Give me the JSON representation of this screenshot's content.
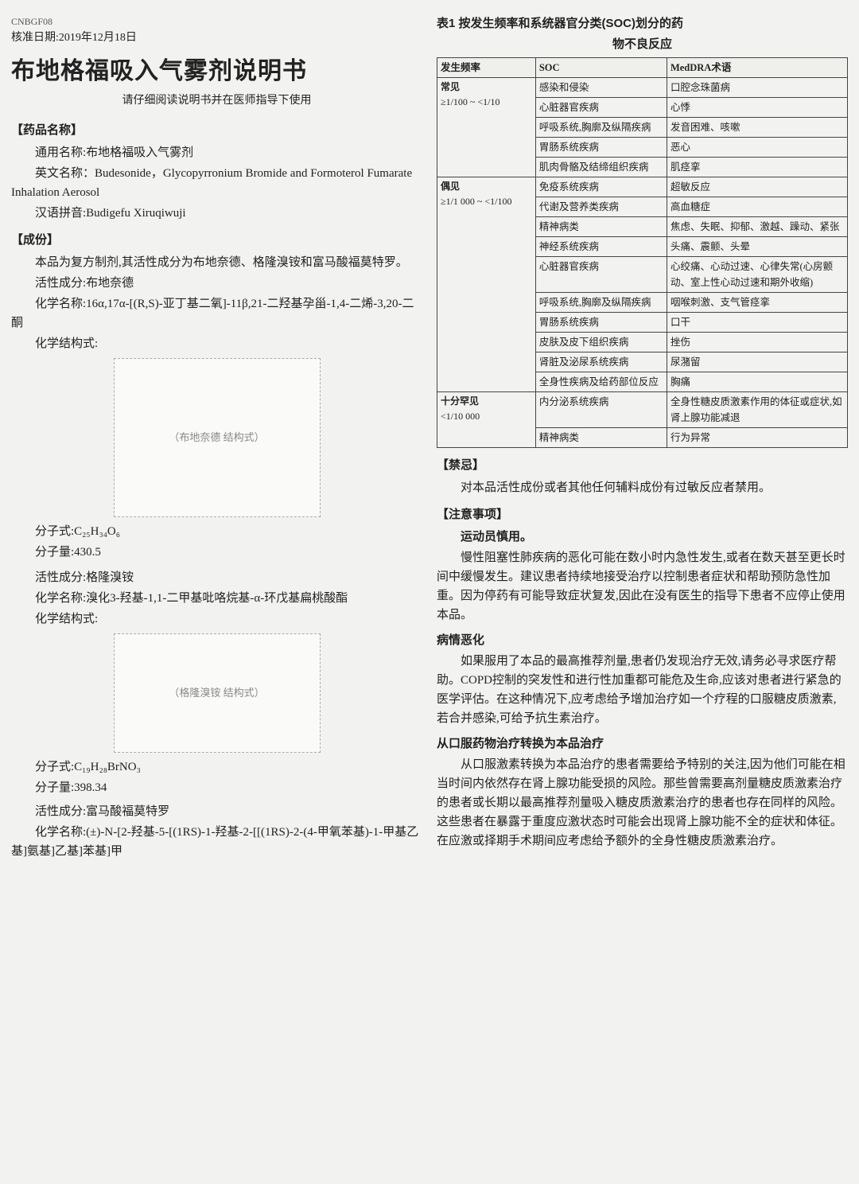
{
  "left": {
    "doccode": "CNBGF08",
    "approval": "核准日期:2019年12月18日",
    "title": "布地格福吸入气雾剂说明书",
    "subtitle": "请仔细阅读说明书并在医师指导下使用",
    "drugname_head": "【药品名称】",
    "generic_label": "通用名称:布地格福吸入气雾剂",
    "english_label": "英文名称：Budesonide，Glycopyrronium Bromide and Formoterol Fumarate Inhalation Aerosol",
    "pinyin_label": "汉语拼音:Budigefu Xiruqiwuji",
    "chengfen_head": "【成份】",
    "chengfen_intro": "本品为复方制剂,其活性成分为布地奈德、格隆溴铵和富马酸福莫特罗。",
    "active1_label": "活性成分:布地奈德",
    "active1_chem": "化学名称:16α,17α-[(R,S)-亚丁基二氧]-11β,21-二羟基孕甾-1,4-二烯-3,20-二酮",
    "structure_label": "化学结构式:",
    "structure1_placeholder": "（布地奈德 结构式）",
    "formula1": "分子式:C₂₅H₃₄O₆",
    "mw1": "分子量:430.5",
    "active2_label": "活性成分:格隆溴铵",
    "active2_chem": "化学名称:溴化3-羟基-1,1-二甲基吡咯烷基-α-环戊基扁桃酸酯",
    "structure2_placeholder": "（格隆溴铵 结构式）",
    "formula2": "分子式:C₁₉H₂₈BrNO₃",
    "mw2": "分子量:398.34",
    "active3_label": "活性成分:富马酸福莫特罗",
    "active3_chem": "化学名称:(±)-N-[2-羟基-5-[(1RS)-1-羟基-2-[[(1RS)-2-(4-甲氧苯基)-1-甲基乙基]氨基]乙基]苯基]甲"
  },
  "right": {
    "table_title1": "表1 按发生频率和系统器官分类(SOC)划分的药",
    "table_title2": "物不良反应",
    "headers": {
      "freq": "发生频率",
      "soc": "SOC",
      "meddra": "MedDRA术语"
    },
    "freq_common_label": "常见",
    "freq_common_range": "≥1/100 ~ <1/10",
    "freq_uncommon_label": "偶见",
    "freq_uncommon_range": "≥1/1 000 ~ <1/100",
    "freq_rare_label": "十分罕见",
    "freq_rare_range": "<1/10 000",
    "rows_common": [
      {
        "soc": "感染和侵染",
        "term": "口腔念珠菌病"
      },
      {
        "soc": "心脏器官疾病",
        "term": "心悸"
      },
      {
        "soc": "呼吸系统,胸廓及纵隔疾病",
        "term": "发音困难、咳嗽"
      },
      {
        "soc": "胃肠系统疾病",
        "term": "恶心"
      },
      {
        "soc": "肌肉骨骼及结缔组织疾病",
        "term": "肌痉挛"
      }
    ],
    "rows_uncommon": [
      {
        "soc": "免疫系统疾病",
        "term": "超敏反应"
      },
      {
        "soc": "代谢及营养类疾病",
        "term": "高血糖症"
      },
      {
        "soc": "精神病类",
        "term": "焦虑、失眠、抑郁、激越、躁动、紧张"
      },
      {
        "soc": "神经系统疾病",
        "term": "头痛、震颤、头晕"
      },
      {
        "soc": "心脏器官疾病",
        "term": "心绞痛、心动过速、心律失常(心房颤动、室上性心动过速和期外收缩)"
      },
      {
        "soc": "呼吸系统,胸廓及纵隔疾病",
        "term": "咽喉刺激、支气管痉挛"
      },
      {
        "soc": "胃肠系统疾病",
        "term": "口干"
      },
      {
        "soc": "皮肤及皮下组织疾病",
        "term": "挫伤"
      },
      {
        "soc": "肾脏及泌尿系统疾病",
        "term": "尿潴留"
      },
      {
        "soc": "全身性疾病及给药部位反应",
        "term": "胸痛"
      }
    ],
    "rows_rare": [
      {
        "soc": "内分泌系统疾病",
        "term": "全身性糖皮质激素作用的体征或症状,如肾上腺功能减退"
      },
      {
        "soc": "精神病类",
        "term": "行为异常"
      }
    ],
    "jinji_head": "【禁忌】",
    "jinji_text": "对本品活性成份或者其他任何辅料成份有过敏反应者禁用。",
    "zhuyi_head": "【注意事项】",
    "athlete": "运动员慎用。",
    "chronic_text": "慢性阻塞性肺疾病的恶化可能在数小时内急性发生,或者在数天甚至更长时间中缓慢发生。建议患者持续地接受治疗以控制患者症状和帮助预防急性加重。因为停药有可能导致症状复发,因此在没有医生的指导下患者不应停止使用本品。",
    "worsen_head": "病情恶化",
    "worsen_text": "如果服用了本品的最高推荐剂量,患者仍发现治疗无效,请务必寻求医疗帮助。COPD控制的突发性和进行性加重都可能危及生命,应该对患者进行紧急的医学评估。在这种情况下,应考虑给予增加治疗如一个疗程的口服糖皮质激素,若合并感染,可给予抗生素治疗。",
    "switch_head": "从口服药物治疗转换为本品治疗",
    "switch_text": "从口服激素转换为本品治疗的患者需要给予特别的关注,因为他们可能在相当时间内依然存在肾上腺功能受损的风险。那些曾需要高剂量糖皮质激素治疗的患者或长期以最高推荐剂量吸入糖皮质激素治疗的患者也存在同样的风险。这些患者在暴露于重度应激状态时可能会出现肾上腺功能不全的症状和体征。在应激或择期手术期间应考虑给予额外的全身性糖皮质激素治疗。"
  }
}
